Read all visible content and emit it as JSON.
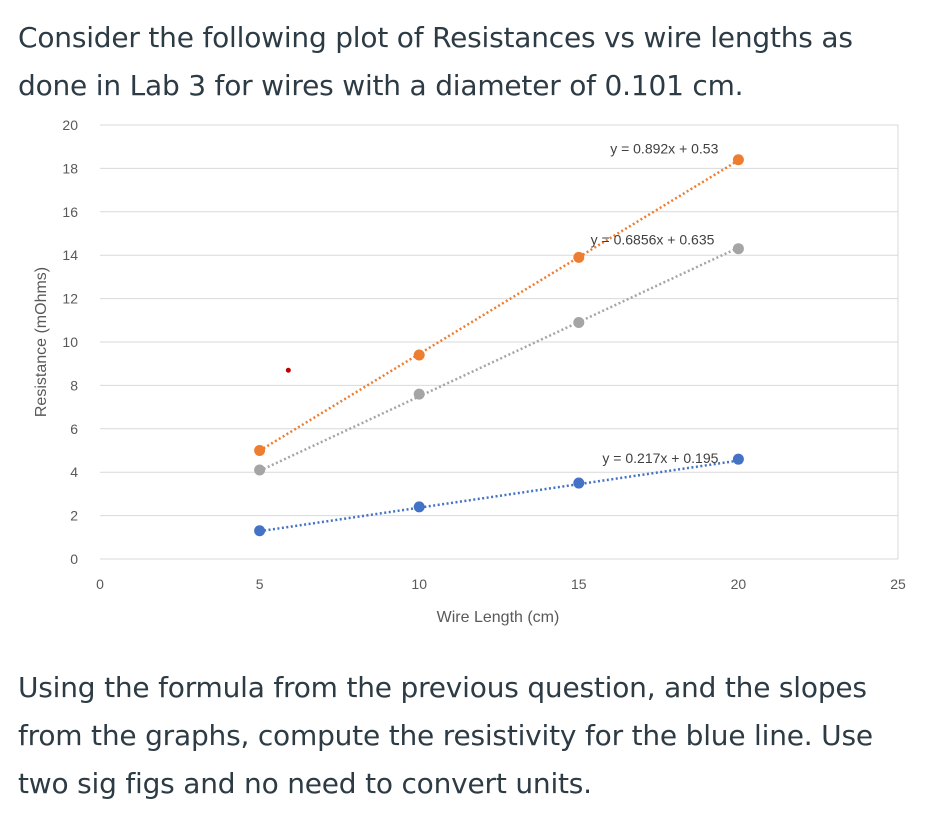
{
  "question": {
    "intro": "Consider the following plot of Resistances vs wire lengths as done in Lab 3 for wires with a diameter of 0.101 cm.",
    "task": "Using the formula from the previous question, and the slopes from the graphs, compute the resistivity for the blue line. Use two sig figs and no need to convert units."
  },
  "chart_data": {
    "type": "scatter",
    "title": "",
    "xlabel": "Wire Length (cm)",
    "ylabel": "Resistance (mOhms)",
    "xlim": [
      0,
      25
    ],
    "ylim": [
      0,
      20
    ],
    "xticks": [
      0,
      5,
      10,
      15,
      20,
      25
    ],
    "yticks": [
      0,
      2,
      4,
      6,
      8,
      10,
      12,
      14,
      16,
      18,
      20
    ],
    "grid": "horizontal",
    "series": [
      {
        "color": "#ED7D31",
        "x": [
          5,
          10,
          15,
          20
        ],
        "y": [
          5.0,
          9.4,
          13.9,
          18.4
        ],
        "trendline": {
          "slope": 0.892,
          "intercept": 0.53,
          "label": "y = 0.892x + 0.53"
        }
      },
      {
        "color": "#A5A5A5",
        "x": [
          5,
          10,
          15,
          20
        ],
        "y": [
          4.1,
          7.6,
          10.9,
          14.3
        ],
        "trendline": {
          "slope": 0.6856,
          "intercept": 0.635,
          "label": "y = 0.6856x + 0.635"
        }
      },
      {
        "color": "#4472C4",
        "x": [
          5,
          10,
          15,
          20
        ],
        "y": [
          1.3,
          2.4,
          3.5,
          4.6
        ],
        "trendline": {
          "slope": 0.217,
          "intercept": 0.195,
          "label": "y = 0.217x + 0.195"
        }
      }
    ],
    "annotations": [
      {
        "type": "point",
        "x": 5.9,
        "y": 8.7,
        "color": "#C00000"
      }
    ]
  }
}
